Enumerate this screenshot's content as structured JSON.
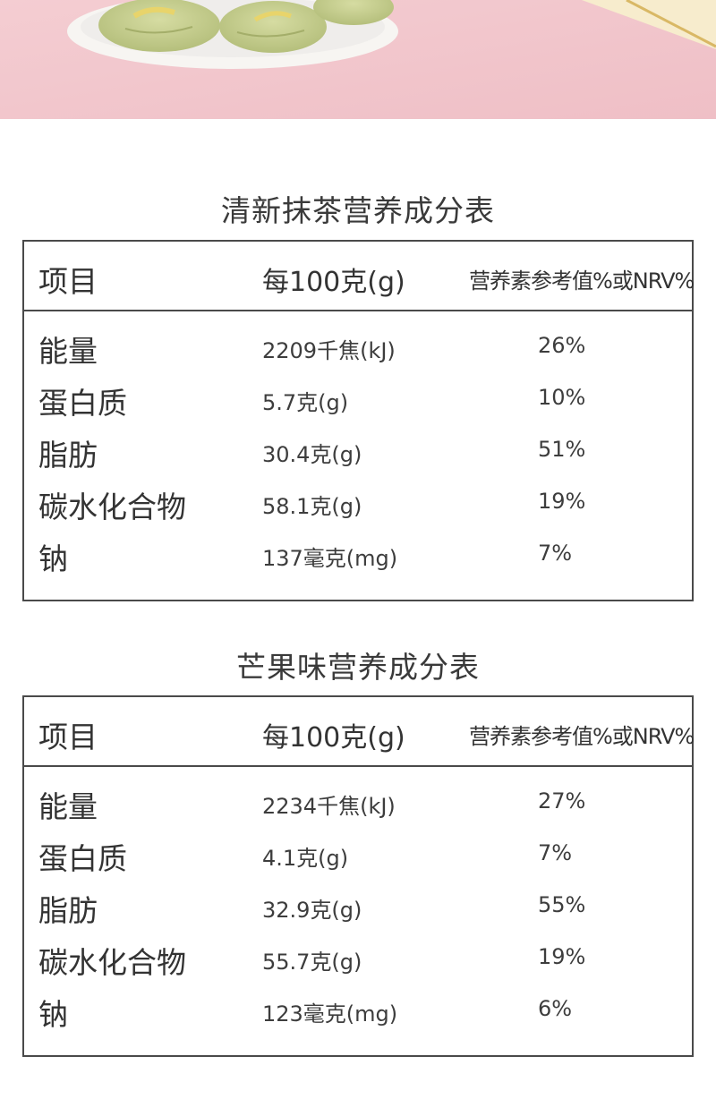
{
  "tables": [
    {
      "title": "清新抹茶营养成分表",
      "headers": [
        "项目",
        "每100克(g)",
        "营养素参考值%或NRV%"
      ],
      "rows": [
        [
          "能量",
          "2209千焦(kJ)",
          "26%"
        ],
        [
          "蛋白质",
          "5.7克(g)",
          "10%"
        ],
        [
          "脂肪",
          "30.4克(g)",
          "51%"
        ],
        [
          "碳水化合物",
          "58.1克(g)",
          "19%"
        ],
        [
          "钠",
          "137毫克(mg)",
          "7%"
        ]
      ]
    },
    {
      "title": "芒果味营养成分表",
      "headers": [
        "项目",
        "每100克(g)",
        "营养素参考值%或NRV%"
      ],
      "rows": [
        [
          "能量",
          "2234千焦(kJ)",
          "27%"
        ],
        [
          "蛋白质",
          "4.1克(g)",
          "7%"
        ],
        [
          "脂肪",
          "32.9克(g)",
          "55%"
        ],
        [
          "碳水化合物",
          "55.7克(g)",
          "19%"
        ],
        [
          "钠",
          "123毫克(mg)",
          "6%"
        ]
      ]
    }
  ],
  "colors": {
    "hero_bg": "#f2c6cc",
    "border": "#4a4a4a",
    "text": "#333333"
  }
}
